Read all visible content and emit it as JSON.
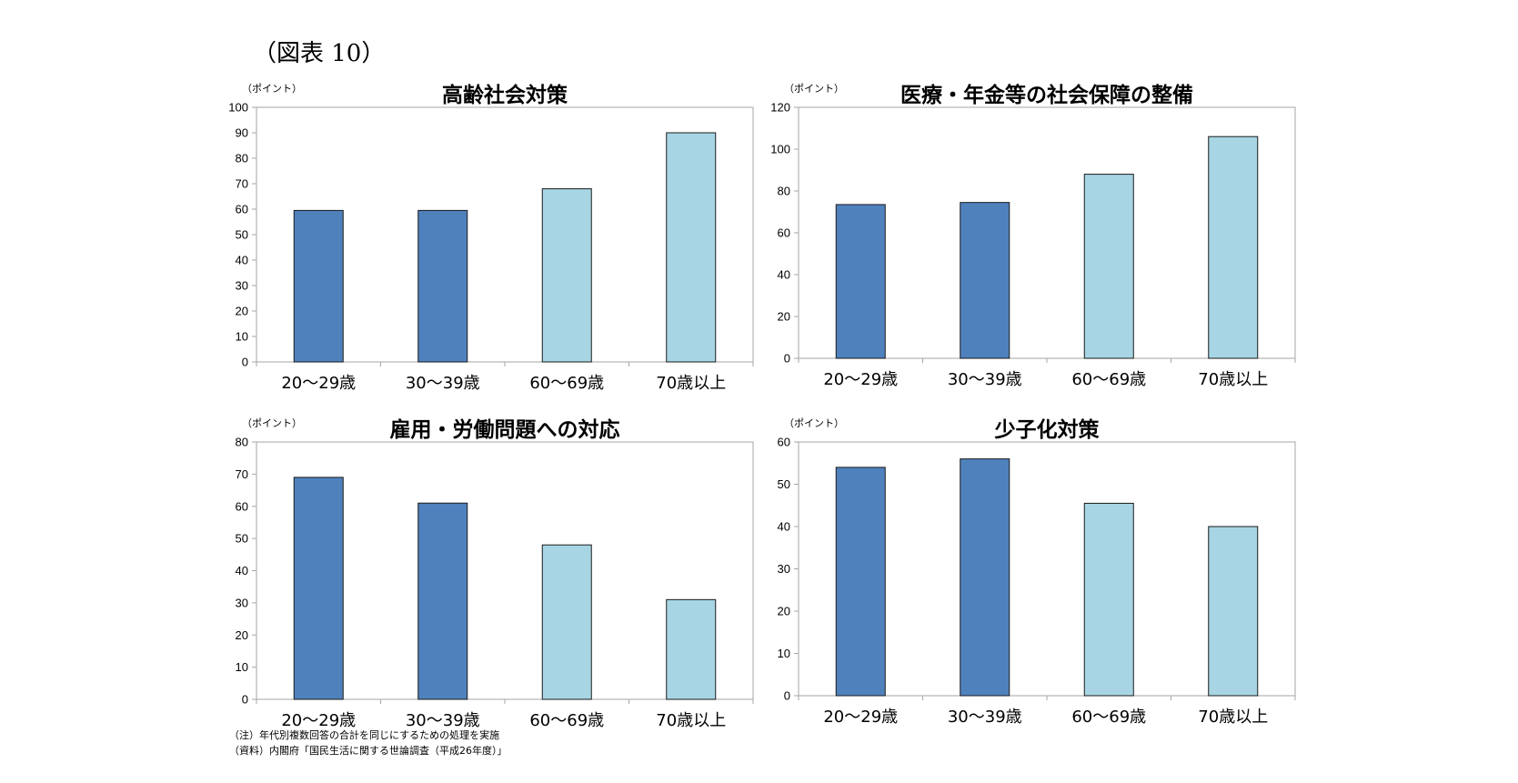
{
  "figure_label": "（図表 10）",
  "colors": {
    "bar_dark": "#4f81bd",
    "bar_light": "#a7d5e3",
    "bar_border": "#1a1a1a",
    "axis": "#a6a6a6"
  },
  "unit_label": "（ポイント）",
  "chart_data": [
    {
      "type": "bar",
      "title": "高齢社会対策",
      "ylabel": "（ポイント）",
      "categories": [
        "20〜29歳",
        "30〜39歳",
        "60〜69歳",
        "70歳以上"
      ],
      "values": [
        59.5,
        59.5,
        68,
        90
      ],
      "bar_colors": [
        "dark",
        "dark",
        "light",
        "light"
      ],
      "ylim": [
        0,
        100
      ],
      "yticks": [
        0,
        10,
        20,
        30,
        40,
        50,
        60,
        70,
        80,
        90,
        100
      ],
      "grid": false
    },
    {
      "type": "bar",
      "title": "医療・年金等の社会保障の整備",
      "ylabel": "（ポイント）",
      "categories": [
        "20〜29歳",
        "30〜39歳",
        "60〜69歳",
        "70歳以上"
      ],
      "values": [
        73.5,
        74.5,
        88,
        106
      ],
      "bar_colors": [
        "dark",
        "dark",
        "light",
        "light"
      ],
      "ylim": [
        0,
        120
      ],
      "yticks": [
        0,
        20,
        40,
        60,
        80,
        100,
        120
      ],
      "grid": false
    },
    {
      "type": "bar",
      "title": "雇用・労働問題への対応",
      "ylabel": "（ポイント）",
      "categories": [
        "20〜29歳",
        "30〜39歳",
        "60〜69歳",
        "70歳以上"
      ],
      "values": [
        69,
        61,
        48,
        31
      ],
      "bar_colors": [
        "dark",
        "dark",
        "light",
        "light"
      ],
      "ylim": [
        0,
        80
      ],
      "yticks": [
        0,
        10,
        20,
        30,
        40,
        50,
        60,
        70,
        80
      ],
      "grid": false
    },
    {
      "type": "bar",
      "title": "少子化対策",
      "ylabel": "（ポイント）",
      "categories": [
        "20〜29歳",
        "30〜39歳",
        "60〜69歳",
        "70歳以上"
      ],
      "values": [
        54,
        56,
        45.5,
        40
      ],
      "bar_colors": [
        "dark",
        "dark",
        "light",
        "light"
      ],
      "ylim": [
        0,
        60
      ],
      "yticks": [
        0,
        10,
        20,
        30,
        40,
        50,
        60
      ],
      "grid": false
    }
  ],
  "notes": {
    "note": "（注）年代別複数回答の合計を同じにするための処理を実施",
    "source": "（資料）内閣府「国民生活に関する世論調査（平成26年度）」"
  }
}
